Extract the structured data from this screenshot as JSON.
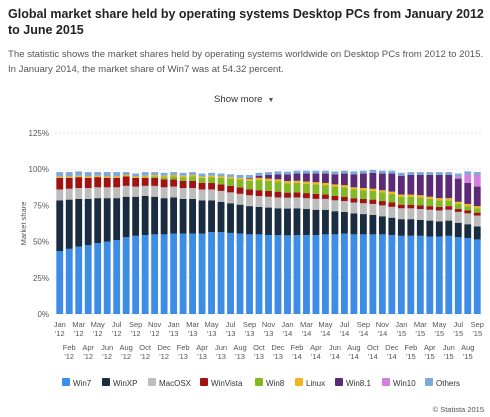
{
  "header": {
    "title": "Global market share held by operating systems Desktop PCs from January 2012 to June 2015",
    "description": "The statistic shows the market shares held by operating systems worldwide on Desktop PCs from 2012 to 2015. In January 2014, the market share of Win7 was at 54.32 percent.",
    "show_more": "Show more",
    "caret_icon": "chevron-down-icon"
  },
  "footer": {
    "credit": "© Statista 2015"
  },
  "colors": {
    "Win7": "#3d8ce6",
    "WinXP": "#1a2c3f",
    "MacOSX": "#bdbdbd",
    "WinVista": "#a11213",
    "Win8": "#82b823",
    "Linux": "#f2b51e",
    "Win8.1": "#5c2a77",
    "Win10": "#d67ddf",
    "Others": "#7aa9dc"
  },
  "chart_data": {
    "type": "bar",
    "stacked": true,
    "ylabel": "Market share",
    "ylim": [
      0,
      125
    ],
    "yticks": [
      "0%",
      "25%",
      "50%",
      "75%",
      "100%",
      "125%"
    ],
    "grid": true,
    "legend_position": "bottom",
    "x_labels_top": [
      "Jan '12",
      "Mar '12",
      "May '12",
      "Jul '12",
      "Sep '12",
      "Nov '12",
      "Jan '13",
      "Mar '13",
      "May '13",
      "Jul '13",
      "Sep '13",
      "Nov '13",
      "Jan '14",
      "Mar '14",
      "May '14",
      "Jul '14",
      "Sep '14",
      "Nov '14",
      "Jan '15",
      "Mar '15",
      "May '15",
      "Jul '15",
      "Sep '15"
    ],
    "x_labels_bottom": [
      "Feb '12",
      "Apr '12",
      "Jun '12",
      "Aug '12",
      "Oct '12",
      "Dec '12",
      "Feb '13",
      "Apr '13",
      "Jun '13",
      "Aug '13",
      "Oct '13",
      "Dec '13",
      "Feb '14",
      "Apr '14",
      "Jun '14",
      "Aug '14",
      "Oct '14",
      "Dec '14",
      "Feb '15",
      "Apr '15",
      "Jun '15",
      "Aug '15"
    ],
    "categories": [
      "Jan '12",
      "Feb '12",
      "Mar '12",
      "Apr '12",
      "May '12",
      "Jun '12",
      "Jul '12",
      "Aug '12",
      "Sep '12",
      "Oct '12",
      "Nov '12",
      "Dec '12",
      "Jan '13",
      "Feb '13",
      "Mar '13",
      "Apr '13",
      "May '13",
      "Jun '13",
      "Jul '13",
      "Aug '13",
      "Sep '13",
      "Oct '13",
      "Nov '13",
      "Dec '13",
      "Jan '14",
      "Feb '14",
      "Mar '14",
      "Apr '14",
      "May '14",
      "Jun '14",
      "Jul '14",
      "Aug '14",
      "Sep '14",
      "Oct '14",
      "Nov '14",
      "Dec '14",
      "Jan '15",
      "Feb '15",
      "Mar '15",
      "Apr '15",
      "May '15",
      "Jun '15",
      "Jul '15",
      "Aug '15",
      "Sep '15"
    ],
    "series": [
      {
        "name": "Win7",
        "values": [
          43.5,
          45,
          46.5,
          47.5,
          49,
          50,
          51,
          53,
          54,
          54.5,
          55,
          55,
          55.5,
          55.5,
          55.5,
          55.5,
          56.5,
          56.5,
          56,
          55.5,
          55,
          55,
          54.5,
          54.5,
          54.32,
          54.5,
          54.5,
          54.5,
          55,
          55,
          55.5,
          55,
          55,
          55,
          55,
          54.5,
          54,
          54,
          54,
          53.5,
          53.5,
          54,
          53,
          52.5,
          51.5
        ]
      },
      {
        "name": "WinXP",
        "values": [
          35,
          34,
          33,
          32,
          31,
          30,
          29,
          28,
          27,
          27,
          26,
          25,
          25,
          24,
          24,
          23,
          22,
          21,
          20.5,
          20,
          19.5,
          19,
          19,
          18.5,
          18.5,
          18.5,
          18,
          17.5,
          17,
          16,
          15,
          14.5,
          14,
          13.5,
          12.5,
          12,
          11.5,
          11.5,
          11,
          11,
          10.5,
          10.5,
          10,
          9.5,
          9
        ]
      },
      {
        "name": "MacOSX",
        "values": [
          7.5,
          7.5,
          7.5,
          7.5,
          7.5,
          7.5,
          7.5,
          7.5,
          7,
          7,
          7.5,
          7.5,
          7.5,
          7.5,
          7.5,
          7.5,
          7.5,
          7.5,
          7.5,
          7.5,
          7.5,
          7.5,
          7.5,
          7.5,
          7.5,
          7.5,
          7.5,
          7.5,
          7.5,
          7.5,
          7.5,
          7.5,
          7.5,
          7.5,
          7.5,
          7.5,
          7.5,
          7.5,
          7.5,
          7.5,
          7.5,
          7.5,
          7.5,
          7.5,
          7.5
        ]
      },
      {
        "name": "WinVista",
        "values": [
          8,
          7.5,
          7.5,
          7,
          7,
          6.5,
          6.5,
          6.5,
          6,
          5.5,
          5.5,
          5.5,
          5,
          5,
          5,
          4.5,
          4.5,
          4.5,
          4.5,
          4.5,
          4,
          4,
          4,
          4,
          3.5,
          3.5,
          3.5,
          3.5,
          3,
          3,
          3,
          3,
          3,
          3,
          3,
          3,
          2.5,
          2.5,
          2.5,
          2.5,
          2.5,
          2.5,
          2,
          2,
          2
        ]
      },
      {
        "name": "Win8",
        "values": [
          0,
          0,
          0,
          0,
          0,
          0,
          0,
          0,
          0,
          0.5,
          1,
          1.5,
          2,
          2.5,
          3,
          3.5,
          4,
          4.5,
          5,
          5.5,
          6,
          7,
          7,
          7,
          6.5,
          6.5,
          6.5,
          6.5,
          6.5,
          6.5,
          6.5,
          6,
          6,
          6,
          6,
          6,
          5.5,
          5.5,
          5.5,
          5,
          4.5,
          4,
          3.5,
          3,
          3
        ]
      },
      {
        "name": "Linux",
        "values": [
          1,
          1,
          1,
          1,
          1,
          1,
          1,
          1,
          1,
          1,
          1,
          1,
          1,
          1,
          1,
          1,
          1,
          1,
          1,
          1,
          1.5,
          1.5,
          1.5,
          1.5,
          1.5,
          1.5,
          1.5,
          1.5,
          1.5,
          1.5,
          1.5,
          1.5,
          1.5,
          1.5,
          1.5,
          1.5,
          1.5,
          1.5,
          1.5,
          1.5,
          1.5,
          1.5,
          1.5,
          1.5,
          1.5
        ]
      },
      {
        "name": "Win8.1",
        "values": [
          0,
          0,
          0,
          0,
          0,
          0,
          0,
          0,
          0,
          0,
          0,
          0,
          0,
          0,
          0,
          0,
          0,
          0,
          0,
          0,
          0.5,
          1.5,
          2.5,
          3.5,
          4.5,
          5,
          5.5,
          6,
          6.5,
          7,
          8,
          9,
          10,
          11,
          11.5,
          12.5,
          13,
          13.5,
          14,
          15,
          16,
          16,
          16,
          14.5,
          13.5
        ]
      },
      {
        "name": "Win10",
        "values": [
          0,
          0,
          0,
          0,
          0,
          0,
          0,
          0,
          0,
          0,
          0,
          0,
          0,
          0,
          0,
          0,
          0,
          0,
          0,
          0,
          0,
          0,
          0,
          0,
          0,
          0,
          0,
          0,
          0,
          0,
          0,
          0,
          0,
          0,
          0,
          0,
          0,
          0,
          0,
          0,
          0,
          0,
          1.5,
          6,
          8
        ]
      },
      {
        "name": "Others",
        "values": [
          3,
          3,
          3,
          3,
          2.5,
          3,
          3,
          2,
          2,
          2.5,
          2,
          2,
          2,
          2,
          2,
          2,
          2,
          2,
          2,
          2,
          2,
          2,
          2,
          2,
          2,
          2,
          2,
          2,
          2,
          2,
          2,
          2,
          2,
          2,
          2,
          2,
          2,
          2,
          2,
          2,
          2,
          2,
          2,
          2,
          2
        ]
      }
    ]
  }
}
